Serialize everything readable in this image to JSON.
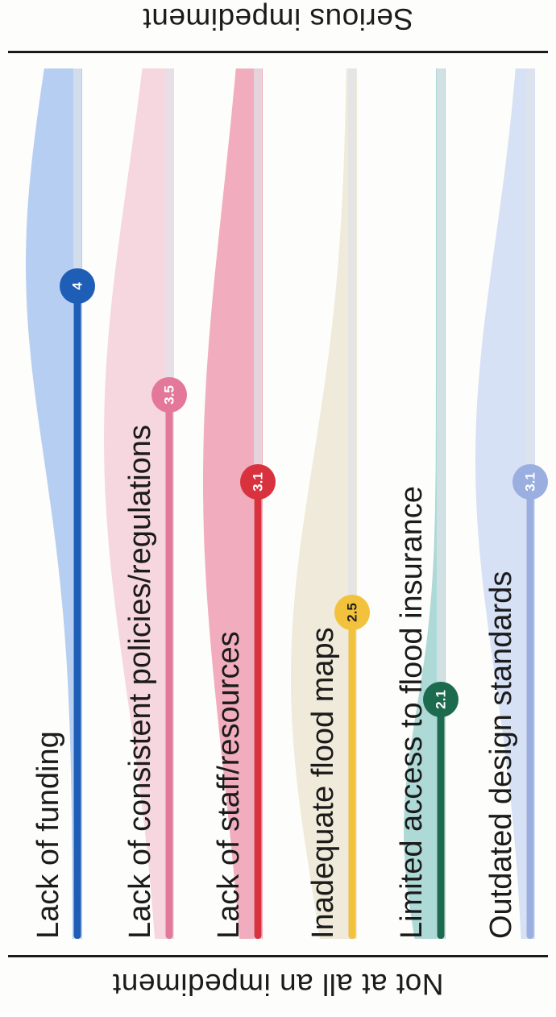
{
  "chart_data": {
    "type": "violin-lollipop",
    "scale_min": 1,
    "scale_max": 5,
    "top_label": "Serious impediment",
    "bottom_label": "Not at all an impediment",
    "categories": [
      "Lack of funding",
      "Lack of consistent policies/regulations",
      "Lack of staff/resources",
      "Inadequate flood maps",
      "Limited access to flood insurance",
      "Outdated design standards"
    ],
    "values": [
      4,
      3.5,
      3.1,
      2.5,
      2.1,
      3.1
    ],
    "value_labels": [
      "4",
      "3.5",
      "3.1",
      "2.5",
      "2.1",
      "3.1"
    ],
    "colors": [
      "#1e5eb6",
      "#e4789b",
      "#d9323f",
      "#f2c23c",
      "#1d6b4e",
      "#9aaee0"
    ],
    "violin_colors": [
      "#a9c6ee",
      "#f4cfd9",
      "#ef9fb1",
      "#ece6d2",
      "#9fd2cf",
      "#cfdcf3"
    ]
  }
}
